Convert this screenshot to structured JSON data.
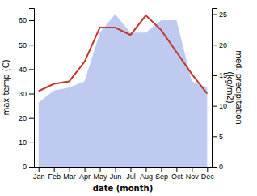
{
  "chart_data": {
    "type": "line",
    "categories": [
      "Jan",
      "Feb",
      "Mar",
      "Apr",
      "May",
      "Jun",
      "Jul",
      "Aug",
      "Sep",
      "Oct",
      "Nov",
      "Dec"
    ],
    "xlabel": "date (month)",
    "ylabel": "max temp (C)",
    "y2label": "med. precipitation\n(kg/m2)",
    "ylim": [
      0,
      65
    ],
    "yticks": [
      0,
      10,
      20,
      30,
      40,
      50,
      60
    ],
    "y2lim": [
      0,
      26
    ],
    "y2ticks": [
      0,
      5,
      10,
      15,
      20,
      25
    ],
    "grid": false,
    "series": [
      {
        "type": "area",
        "axis": "y2",
        "color": "#b8c4ee",
        "values": [
          10.5,
          12.5,
          13,
          14,
          22,
          25,
          22,
          22,
          24,
          24,
          14,
          13
        ]
      },
      {
        "type": "line",
        "color": "#c0392b",
        "values": [
          31,
          34,
          35,
          43,
          57,
          57,
          54,
          62,
          56,
          47,
          38,
          30
        ]
      }
    ]
  }
}
